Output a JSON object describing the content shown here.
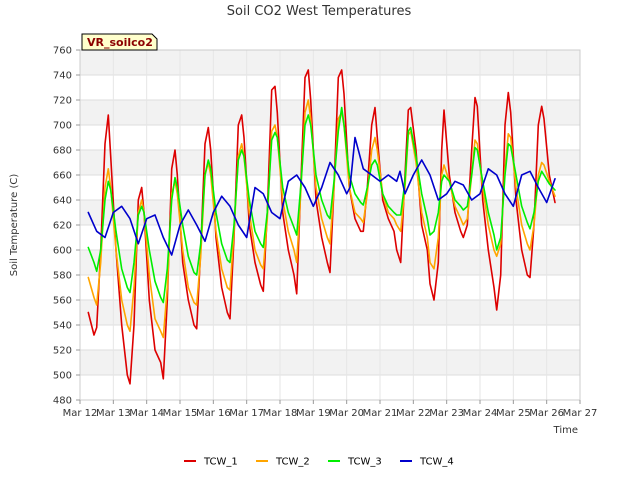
{
  "chart_data": {
    "type": "line",
    "title": "Soil CO2 West Temperatures",
    "xlabel": "Time",
    "ylabel": "Soil Temperature (C)",
    "station_label": "VR_soilco2",
    "x_ticks": [
      "Mar 12",
      "Mar 13",
      "Mar 14",
      "Mar 15",
      "Mar 16",
      "Mar 17",
      "Mar 18",
      "Mar 19",
      "Mar 20",
      "Mar 21",
      "Mar 22",
      "Mar 23",
      "Mar 24",
      "Mar 25",
      "Mar 26",
      "Mar 27"
    ],
    "xlim": [
      0,
      15
    ],
    "ylim": [
      480,
      760
    ],
    "y_ticks": [
      480,
      500,
      520,
      540,
      560,
      580,
      600,
      620,
      640,
      660,
      680,
      700,
      720,
      740,
      760
    ],
    "grid": true,
    "legend_position": "bottom-center",
    "series": [
      {
        "name": "TCW_1",
        "color": "#dd0000",
        "x": [
          0.25,
          0.42,
          0.5,
          0.62,
          0.75,
          0.85,
          0.92,
          1.08,
          1.25,
          1.42,
          1.5,
          1.62,
          1.75,
          1.85,
          1.92,
          2.08,
          2.25,
          2.42,
          2.5,
          2.62,
          2.75,
          2.85,
          2.92,
          3.08,
          3.25,
          3.42,
          3.5,
          3.62,
          3.75,
          3.85,
          3.92,
          4.08,
          4.25,
          4.42,
          4.5,
          4.62,
          4.75,
          4.85,
          4.92,
          5.08,
          5.25,
          5.42,
          5.5,
          5.62,
          5.75,
          5.85,
          5.92,
          6.08,
          6.25,
          6.42,
          6.5,
          6.62,
          6.75,
          6.85,
          6.92,
          7.08,
          7.25,
          7.42,
          7.5,
          7.62,
          7.75,
          7.85,
          7.92,
          8.08,
          8.25,
          8.42,
          8.5,
          8.62,
          8.75,
          8.85,
          8.92,
          9.08,
          9.25,
          9.42,
          9.5,
          9.62,
          9.75,
          9.85,
          9.92,
          10.08,
          10.25,
          10.42,
          10.5,
          10.62,
          10.75,
          10.85,
          10.92,
          11.08,
          11.25,
          11.42,
          11.5,
          11.62,
          11.75,
          11.85,
          11.92,
          12.08,
          12.25,
          12.42,
          12.5,
          12.62,
          12.75,
          12.85,
          12.92,
          13.08,
          13.25,
          13.42,
          13.5,
          13.62,
          13.75,
          13.85,
          13.92,
          14.08,
          14.25
        ],
        "y": [
          550,
          532,
          538,
          600,
          685,
          708,
          675,
          600,
          540,
          500,
          493,
          540,
          640,
          650,
          630,
          560,
          520,
          510,
          497,
          560,
          665,
          680,
          660,
          590,
          560,
          540,
          537,
          600,
          685,
          698,
          680,
          610,
          570,
          550,
          545,
          610,
          700,
          708,
          690,
          620,
          590,
          572,
          567,
          630,
          728,
          731,
          710,
          630,
          600,
          580,
          565,
          650,
          738,
          744,
          720,
          640,
          610,
          590,
          582,
          650,
          738,
          744,
          725,
          650,
          625,
          615,
          615,
          650,
          700,
          714,
          690,
          640,
          625,
          615,
          600,
          590,
          660,
          712,
          714,
          680,
          620,
          600,
          573,
          560,
          590,
          680,
          712,
          660,
          630,
          615,
          610,
          620,
          680,
          722,
          715,
          640,
          600,
          570,
          552,
          580,
          700,
          726,
          710,
          640,
          600,
          580,
          578,
          620,
          700,
          715,
          705,
          660,
          638
        ]
      },
      {
        "name": "TCW_2",
        "color": "#ffa500",
        "x": [
          0.25,
          0.42,
          0.5,
          0.62,
          0.75,
          0.85,
          0.92,
          1.08,
          1.25,
          1.42,
          1.5,
          1.62,
          1.75,
          1.85,
          1.92,
          2.08,
          2.25,
          2.42,
          2.5,
          2.62,
          2.75,
          2.85,
          2.92,
          3.08,
          3.25,
          3.42,
          3.5,
          3.62,
          3.75,
          3.85,
          3.92,
          4.08,
          4.25,
          4.42,
          4.5,
          4.62,
          4.75,
          4.85,
          4.92,
          5.08,
          5.25,
          5.42,
          5.5,
          5.62,
          5.75,
          5.85,
          5.92,
          6.08,
          6.25,
          6.42,
          6.5,
          6.62,
          6.75,
          6.85,
          6.92,
          7.08,
          7.25,
          7.42,
          7.5,
          7.62,
          7.75,
          7.85,
          7.92,
          8.08,
          8.25,
          8.42,
          8.5,
          8.62,
          8.75,
          8.85,
          8.92,
          9.08,
          9.25,
          9.42,
          9.5,
          9.62,
          9.75,
          9.85,
          9.92,
          10.08,
          10.25,
          10.42,
          10.5,
          10.62,
          10.75,
          10.85,
          10.92,
          11.08,
          11.25,
          11.42,
          11.5,
          11.62,
          11.75,
          11.85,
          11.92,
          12.08,
          12.25,
          12.42,
          12.5,
          12.62,
          12.75,
          12.85,
          12.92,
          13.08,
          13.25,
          13.42,
          13.5,
          13.62,
          13.75,
          13.85,
          13.92,
          14.08,
          14.25
        ],
        "y": [
          578,
          562,
          556,
          590,
          650,
          665,
          650,
          600,
          560,
          540,
          535,
          570,
          630,
          640,
          630,
          580,
          545,
          535,
          530,
          570,
          645,
          655,
          645,
          600,
          570,
          558,
          556,
          595,
          660,
          670,
          660,
          615,
          585,
          570,
          568,
          615,
          675,
          685,
          675,
          630,
          600,
          588,
          585,
          625,
          695,
          700,
          690,
          640,
          615,
          600,
          590,
          645,
          710,
          720,
          705,
          650,
          625,
          610,
          605,
          650,
          705,
          710,
          700,
          650,
          630,
          625,
          622,
          645,
          680,
          690,
          680,
          645,
          630,
          625,
          620,
          615,
          650,
          692,
          695,
          670,
          630,
          610,
          590,
          585,
          610,
          660,
          668,
          655,
          635,
          625,
          620,
          625,
          660,
          688,
          685,
          650,
          620,
          600,
          595,
          605,
          665,
          693,
          690,
          650,
          620,
          605,
          600,
          620,
          660,
          670,
          668,
          655,
          643
        ]
      },
      {
        "name": "TCW_3",
        "color": "#00ee00",
        "x": [
          0.25,
          0.42,
          0.5,
          0.62,
          0.75,
          0.85,
          0.92,
          1.08,
          1.25,
          1.42,
          1.5,
          1.62,
          1.75,
          1.85,
          1.92,
          2.08,
          2.25,
          2.42,
          2.5,
          2.62,
          2.75,
          2.85,
          2.92,
          3.08,
          3.25,
          3.42,
          3.5,
          3.62,
          3.75,
          3.85,
          3.92,
          4.08,
          4.25,
          4.42,
          4.5,
          4.62,
          4.75,
          4.85,
          4.92,
          5.08,
          5.25,
          5.42,
          5.5,
          5.62,
          5.75,
          5.85,
          5.92,
          6.08,
          6.25,
          6.42,
          6.5,
          6.62,
          6.75,
          6.85,
          6.92,
          7.08,
          7.25,
          7.42,
          7.5,
          7.62,
          7.75,
          7.85,
          7.92,
          8.08,
          8.25,
          8.42,
          8.5,
          8.62,
          8.75,
          8.85,
          8.92,
          9.08,
          9.25,
          9.42,
          9.5,
          9.62,
          9.75,
          9.85,
          9.92,
          10.08,
          10.25,
          10.42,
          10.5,
          10.62,
          10.75,
          10.85,
          10.92,
          11.08,
          11.25,
          11.42,
          11.5,
          11.62,
          11.75,
          11.85,
          11.92,
          12.08,
          12.25,
          12.42,
          12.5,
          12.62,
          12.75,
          12.85,
          12.92,
          13.08,
          13.25,
          13.42,
          13.5,
          13.62,
          13.75,
          13.85,
          13.92,
          14.08,
          14.25
        ],
        "y": [
          602,
          590,
          583,
          600,
          640,
          655,
          648,
          615,
          585,
          570,
          566,
          590,
          628,
          635,
          630,
          600,
          575,
          562,
          558,
          585,
          640,
          658,
          650,
          620,
          595,
          582,
          580,
          605,
          660,
          672,
          665,
          630,
          605,
          592,
          590,
          620,
          672,
          680,
          675,
          640,
          615,
          605,
          602,
          630,
          688,
          694,
          690,
          650,
          630,
          618,
          612,
          650,
          700,
          708,
          700,
          660,
          640,
          628,
          625,
          655,
          695,
          714,
          700,
          660,
          645,
          638,
          636,
          650,
          668,
          672,
          668,
          645,
          635,
          630,
          628,
          628,
          655,
          695,
          698,
          675,
          645,
          625,
          612,
          615,
          630,
          655,
          660,
          655,
          640,
          635,
          632,
          635,
          660,
          682,
          680,
          655,
          630,
          612,
          600,
          610,
          660,
          685,
          683,
          660,
          635,
          622,
          617,
          630,
          655,
          663,
          660,
          653,
          648
        ]
      },
      {
        "name": "TCW_4",
        "color": "#0000cc",
        "x": [
          0.25,
          0.5,
          0.75,
          1.0,
          1.25,
          1.5,
          1.75,
          2.0,
          2.25,
          2.5,
          2.75,
          3.0,
          3.25,
          3.5,
          3.75,
          4.0,
          4.25,
          4.5,
          4.75,
          5.0,
          5.25,
          5.5,
          5.75,
          6.0,
          6.25,
          6.5,
          6.75,
          7.0,
          7.25,
          7.5,
          7.75,
          8.0,
          8.1,
          8.25,
          8.5,
          8.75,
          9.0,
          9.25,
          9.5,
          9.6,
          9.75,
          10.0,
          10.25,
          10.5,
          10.75,
          11.0,
          11.25,
          11.5,
          11.75,
          12.0,
          12.25,
          12.5,
          12.75,
          13.0,
          13.25,
          13.5,
          13.75,
          14.0,
          14.25
        ],
        "y": [
          630,
          615,
          610,
          630,
          635,
          625,
          605,
          625,
          628,
          610,
          596,
          620,
          632,
          620,
          607,
          630,
          643,
          635,
          620,
          610,
          650,
          645,
          630,
          625,
          655,
          660,
          650,
          635,
          650,
          670,
          660,
          645,
          650,
          690,
          665,
          660,
          655,
          660,
          655,
          663,
          645,
          660,
          672,
          660,
          640,
          645,
          655,
          652,
          640,
          645,
          665,
          660,
          645,
          635,
          660,
          663,
          650,
          638,
          657
        ]
      }
    ]
  }
}
